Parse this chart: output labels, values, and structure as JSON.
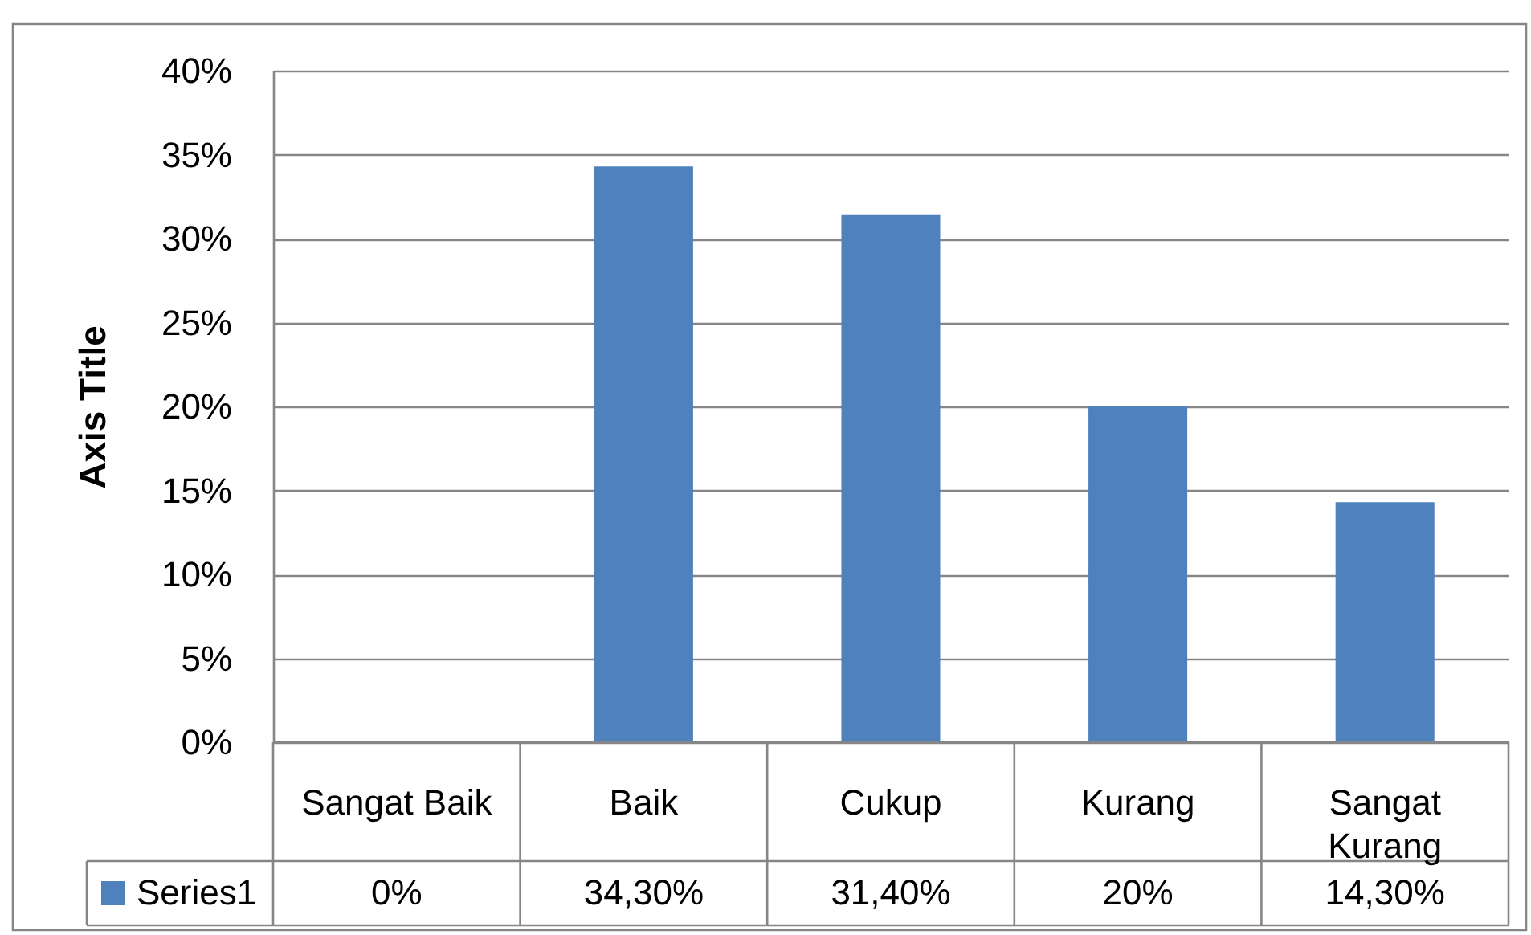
{
  "chart_data": {
    "type": "bar",
    "categories": [
      "Sangat Baik",
      "Baik",
      "Cukup",
      "Kurang",
      "Sangat Kurang"
    ],
    "series": [
      {
        "name": "Series1",
        "color": "#4f81bd",
        "values": [
          0,
          34.3,
          31.4,
          20,
          14.3
        ],
        "value_labels": [
          "0%",
          "34,30%",
          "31,40%",
          "20%",
          "14,30%"
        ]
      }
    ],
    "ylabel": "Axis Title",
    "ylim": [
      0,
      40
    ],
    "yticks": [
      {
        "value": 0,
        "label": "0%"
      },
      {
        "value": 5,
        "label": "5%"
      },
      {
        "value": 10,
        "label": "10%"
      },
      {
        "value": 15,
        "label": "15%"
      },
      {
        "value": 20,
        "label": "20%"
      },
      {
        "value": 25,
        "label": "25%"
      },
      {
        "value": 30,
        "label": "30%"
      },
      {
        "value": 35,
        "label": "35%"
      },
      {
        "value": 40,
        "label": "40%"
      }
    ],
    "grid": "y",
    "legend": "bottom"
  }
}
